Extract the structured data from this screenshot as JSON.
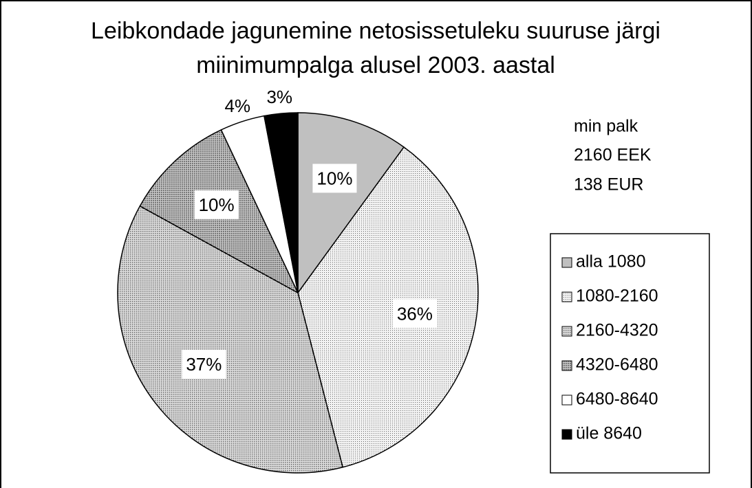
{
  "chart_data": {
    "type": "pie",
    "title": [
      "Leibkondade jagunemine netosissetuleku suuruse järgi",
      "miinimumpalga alusel 2003. aastal"
    ],
    "annotation": [
      "min palk",
      "2160 EEK",
      "138 EUR"
    ],
    "categories": [
      "alla 1080",
      "1080-2160",
      "2160-4320",
      "4320-6480",
      "6480-8640",
      "üle 8640"
    ],
    "values": [
      10,
      36,
      37,
      10,
      4,
      3
    ],
    "value_labels": [
      "10%",
      "36%",
      "37%",
      "10%",
      "4%",
      "3%"
    ],
    "colors": [
      "#c0c0c0",
      "#f2f2f2",
      "#dcdcdc",
      "#c8c8c8",
      "#ffffff",
      "#000000"
    ],
    "legend": "right"
  }
}
